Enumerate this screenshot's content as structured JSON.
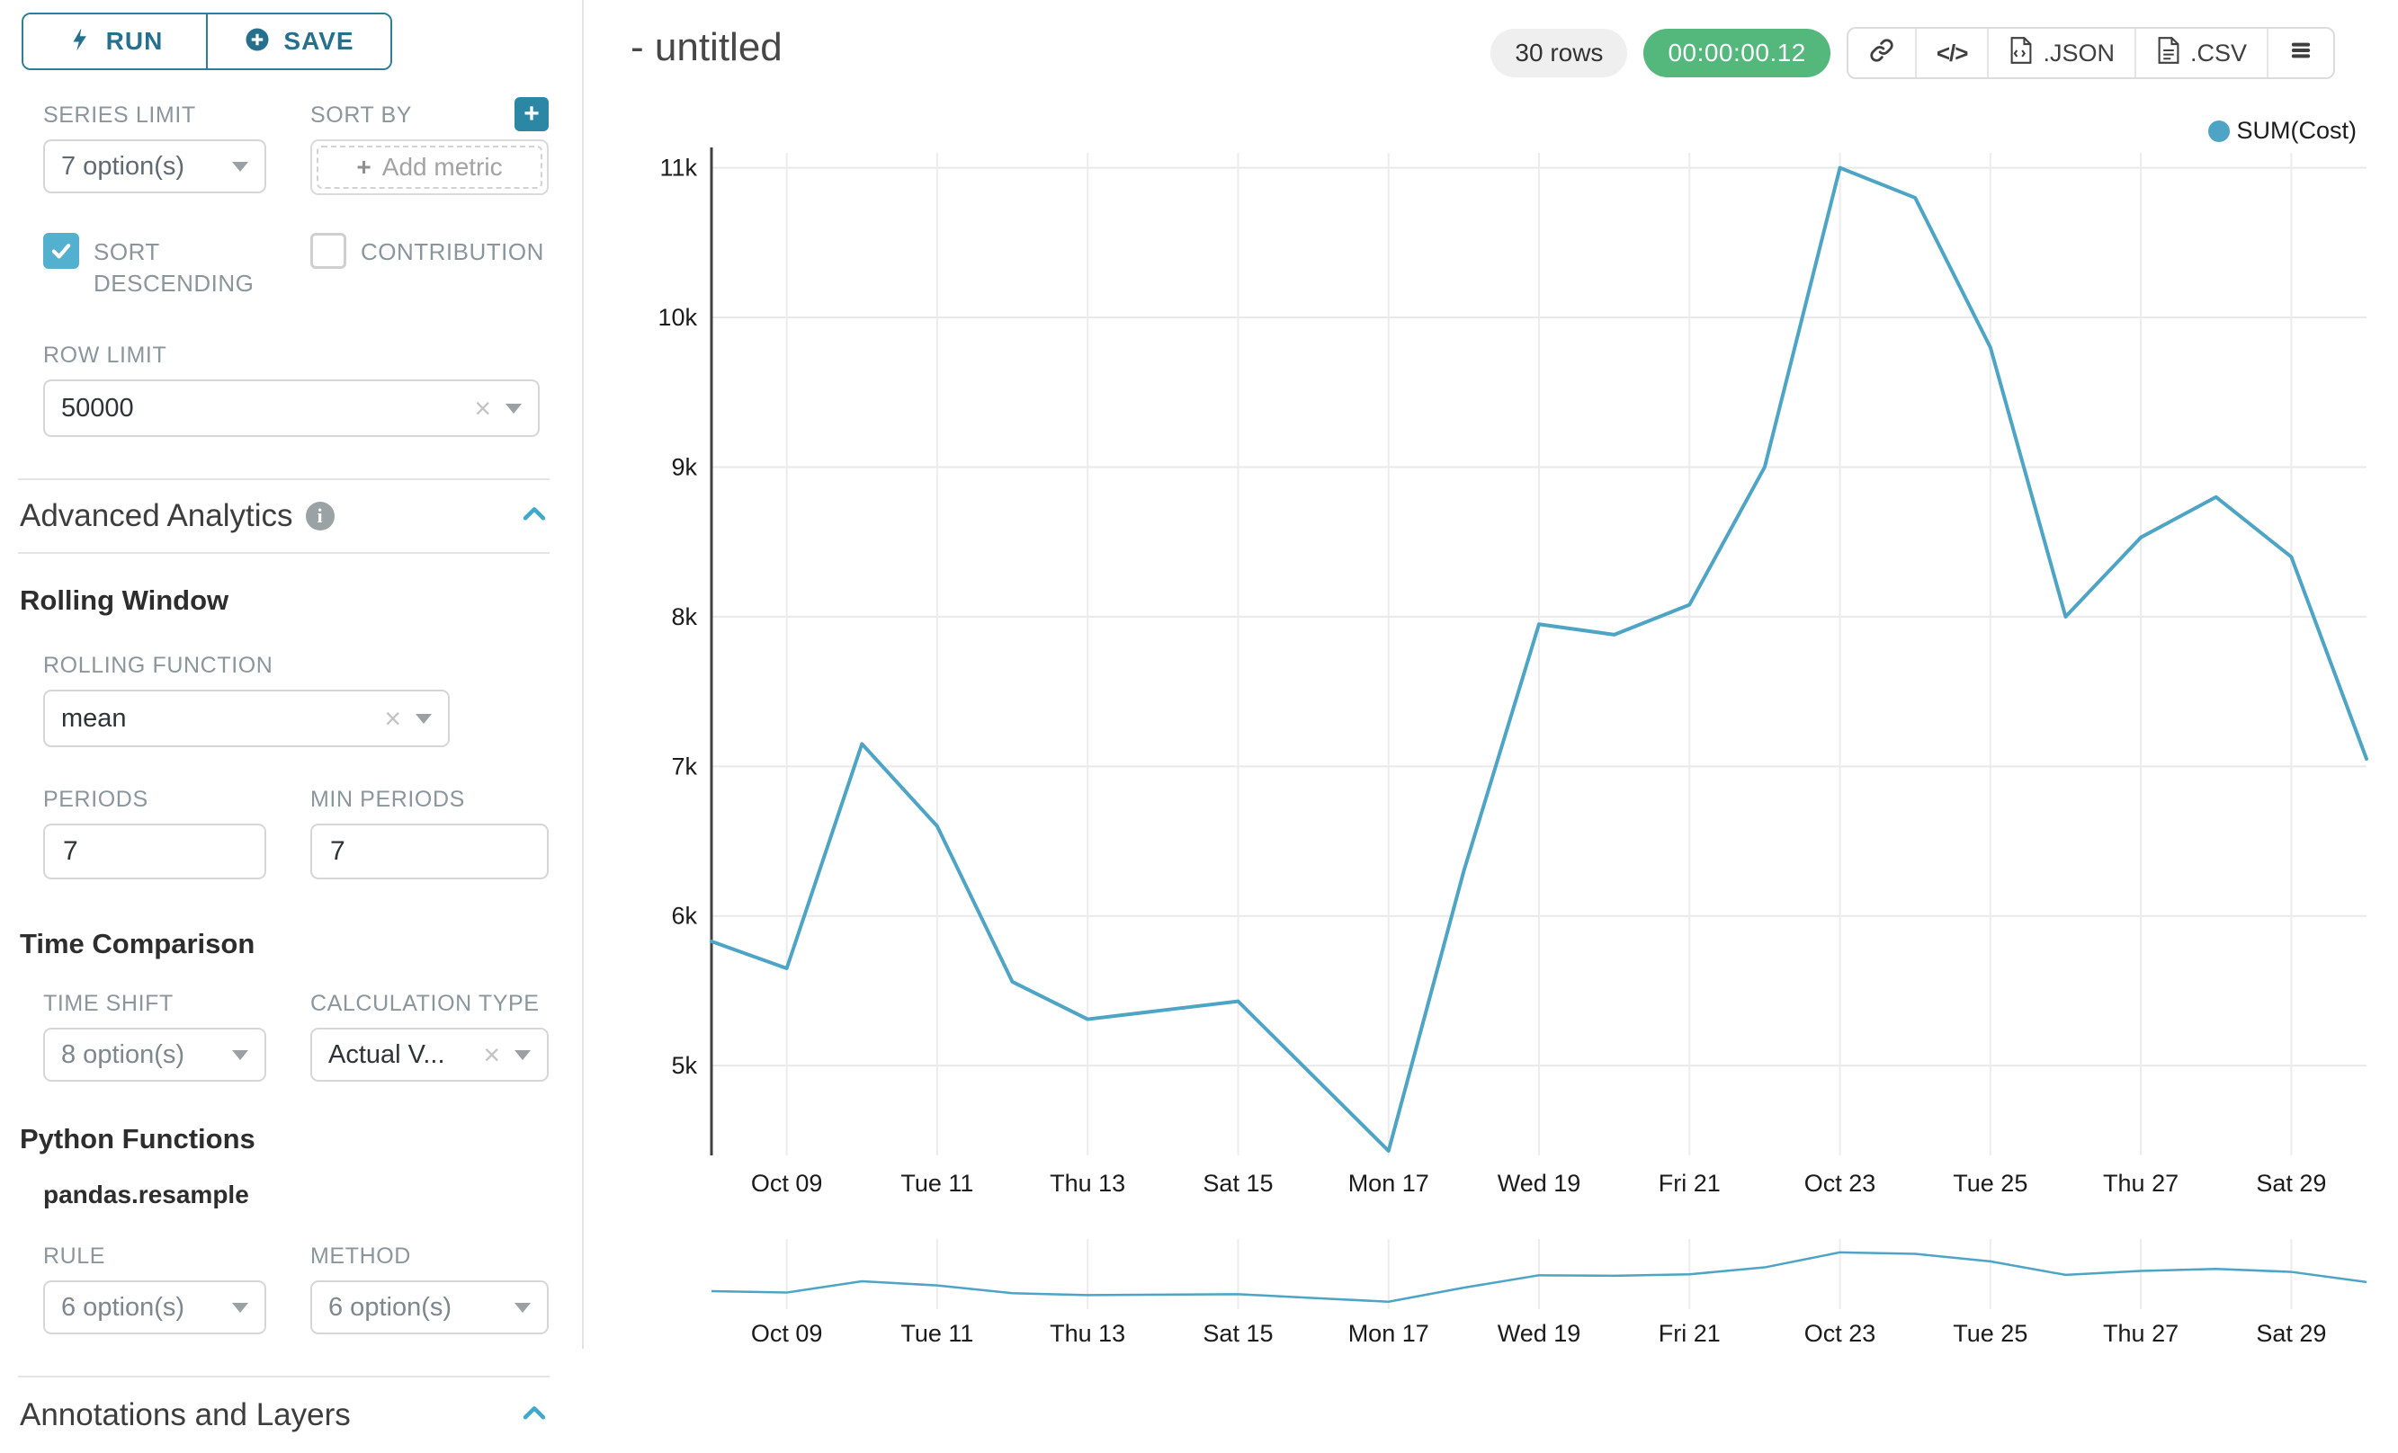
{
  "sidebar": {
    "run_button": "RUN",
    "save_button": "SAVE",
    "series_limit_label": "SERIES LIMIT",
    "series_limit_value": "7 option(s)",
    "sort_by_label": "SORT BY",
    "sort_by_placeholder": "Add metric",
    "sort_descending_label": "SORT DESCENDING",
    "contribution_label": "CONTRIBUTION",
    "row_limit_label": "ROW LIMIT",
    "row_limit_value": "50000",
    "advanced_analytics_title": "Advanced Analytics",
    "rolling_window_title": "Rolling Window",
    "rolling_function_label": "ROLLING FUNCTION",
    "rolling_function_value": "mean",
    "periods_label": "PERIODS",
    "periods_value": "7",
    "min_periods_label": "MIN PERIODS",
    "min_periods_value": "7",
    "time_comparison_title": "Time Comparison",
    "time_shift_label": "TIME SHIFT",
    "time_shift_value": "8 option(s)",
    "calculation_type_label": "CALCULATION TYPE",
    "calculation_type_value": "Actual V...",
    "python_functions_title": "Python Functions",
    "resample_title": "pandas.resample",
    "rule_label": "RULE",
    "rule_value": "6 option(s)",
    "method_label": "METHOD",
    "method_value": "6 option(s)",
    "annotations_title": "Annotations and Layers"
  },
  "header": {
    "title": "- untitled",
    "rows_badge": "30 rows",
    "timer_badge": "00:00:00.12",
    "export_json": ".JSON",
    "export_csv": ".CSV"
  },
  "chart_data": {
    "type": "line",
    "color": "#4DA4C4",
    "legend": [
      {
        "label": "SUM(Cost)"
      }
    ],
    "x": [
      "Oct 08",
      "Oct 09",
      "Oct 10",
      "Oct 11",
      "Oct 12",
      "Oct 13",
      "Oct 14",
      "Oct 15",
      "Oct 16",
      "Oct 17",
      "Oct 18",
      "Oct 19",
      "Oct 20",
      "Oct 21",
      "Oct 22",
      "Oct 23",
      "Oct 24",
      "Oct 25",
      "Oct 26",
      "Oct 27",
      "Oct 28",
      "Oct 29",
      "Oct 30"
    ],
    "series": [
      {
        "name": "SUM(Cost)",
        "values": [
          5830,
          5650,
          7150,
          6600,
          5560,
          5310,
          5370,
          5430,
          4930,
          4430,
          6300,
          7950,
          7880,
          8080,
          9000,
          11000,
          10800,
          9800,
          8000,
          8530,
          8800,
          8400,
          7050
        ]
      }
    ],
    "x_ticks": [
      {
        "index": 1,
        "label": "Oct 09"
      },
      {
        "index": 3,
        "label": "Tue 11"
      },
      {
        "index": 5,
        "label": "Thu 13"
      },
      {
        "index": 7,
        "label": "Sat 15"
      },
      {
        "index": 9,
        "label": "Mon 17"
      },
      {
        "index": 11,
        "label": "Wed 19"
      },
      {
        "index": 13,
        "label": "Fri 21"
      },
      {
        "index": 15,
        "label": "Oct 23"
      },
      {
        "index": 17,
        "label": "Tue 25"
      },
      {
        "index": 19,
        "label": "Thu 27"
      },
      {
        "index": 21,
        "label": "Sat 29"
      }
    ],
    "y_ticks": [
      {
        "value": 5000,
        "label": "5k"
      },
      {
        "value": 6000,
        "label": "6k"
      },
      {
        "value": 7000,
        "label": "7k"
      },
      {
        "value": 8000,
        "label": "8k"
      },
      {
        "value": 9000,
        "label": "9k"
      },
      {
        "value": 10000,
        "label": "10k"
      },
      {
        "value": 11000,
        "label": "11k"
      }
    ],
    "ylim": [
      4400,
      11100
    ],
    "grid": true,
    "legend_position": "top-right",
    "has_mini_preview": true
  }
}
